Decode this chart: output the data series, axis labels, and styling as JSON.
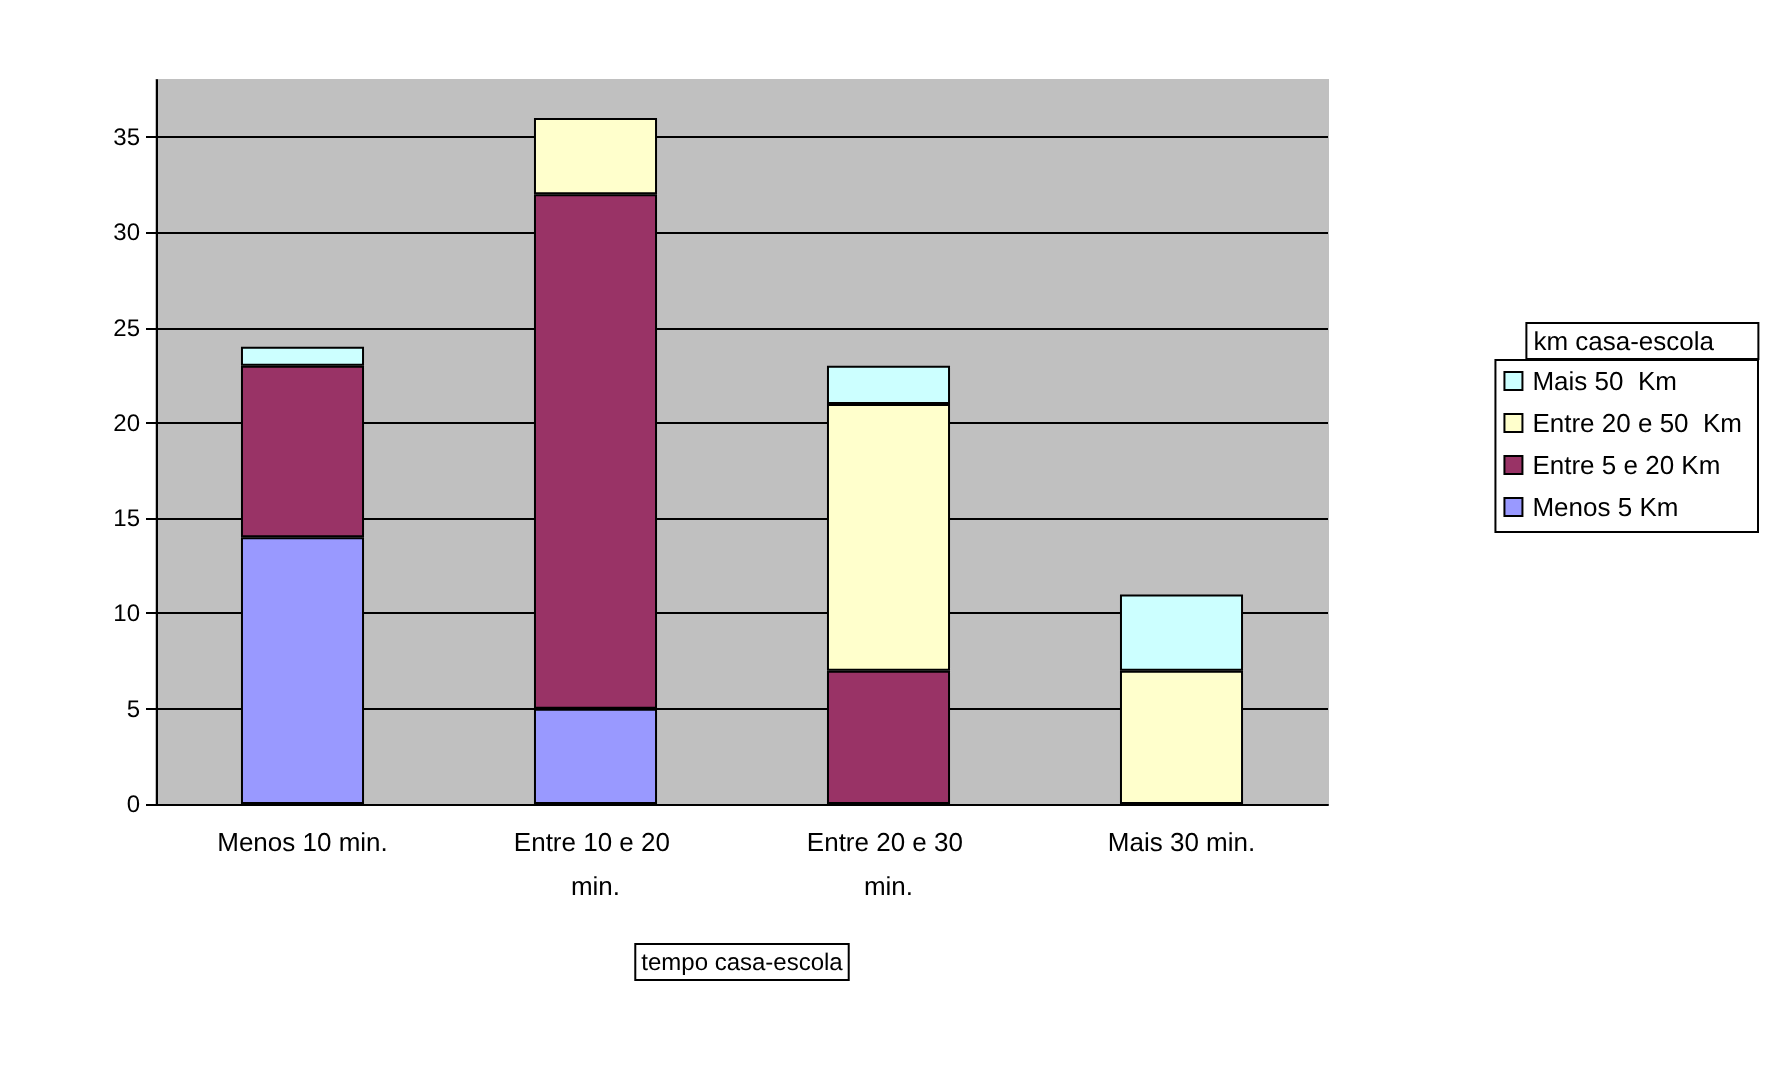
{
  "chart_data": {
    "type": "bar",
    "stacked": true,
    "xlabel": "tempo casa-escola",
    "legend_title": "km casa-escola",
    "categories": [
      "Menos 10 min.",
      "Entre 10 e 20 min.",
      "Entre 20 e 30 min.",
      "Mais 30 min."
    ],
    "series": [
      {
        "name": "Menos 5 Km",
        "color": "#9999ff",
        "values": [
          14,
          5,
          0,
          0
        ]
      },
      {
        "name": "Entre 5 e 20 Km",
        "color": "#993366",
        "values": [
          9,
          27,
          7,
          0
        ]
      },
      {
        "name": "Entre 20 e 50  Km",
        "color": "#ffffcc",
        "values": [
          0,
          4,
          14,
          7
        ]
      },
      {
        "name": "Mais 50  Km",
        "color": "#ccffff",
        "values": [
          1,
          0,
          2,
          4
        ]
      }
    ],
    "ylim": [
      0,
      38
    ],
    "yticks": [
      0,
      5,
      10,
      15,
      20,
      25,
      30,
      35
    ],
    "grid": "y",
    "legend": "right"
  }
}
